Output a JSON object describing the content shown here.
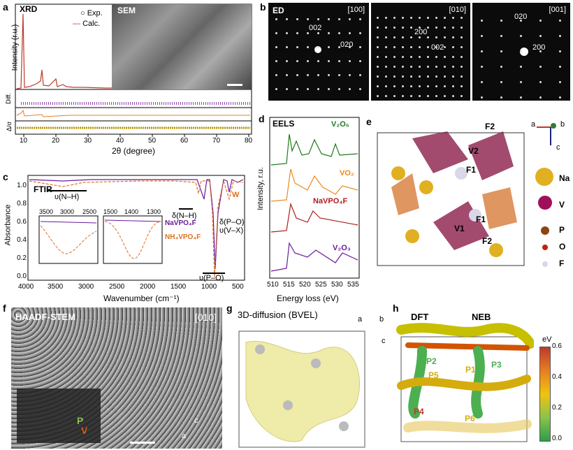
{
  "panels": {
    "a": {
      "letter": "a",
      "xrd_label": "XRD",
      "sem_label": "SEM",
      "legend": [
        "Exp.",
        "Calc."
      ],
      "ylabel": "Intensity (r.u.)",
      "diff_label": "Diff.",
      "sigma_label": "Δ/σ",
      "xlabel": "2θ (degree)",
      "xticks": [
        "10",
        "20",
        "30",
        "40",
        "50",
        "60",
        "70",
        "80"
      ]
    },
    "b": {
      "letter": "b",
      "ed_label": "ED",
      "zones": [
        "[100]",
        "[010]",
        "[001]"
      ],
      "spots_100": [
        "002",
        "020"
      ],
      "spots_010": [
        "200",
        "002"
      ],
      "spots_001": [
        "020",
        "200"
      ]
    },
    "c": {
      "letter": "c",
      "title": "FTIR",
      "ylabel": "Absorbance",
      "xlabel": "Wavenumber (cm⁻¹)",
      "xticks": [
        "4000",
        "3500",
        "3000",
        "2500",
        "2000",
        "1500",
        "1000",
        "500"
      ],
      "yticks": [
        "0.0",
        "0.2",
        "0.4",
        "0.6",
        "0.8",
        "1.0"
      ],
      "ann_nh1": "υ(N–H)",
      "ann_nh2": "δ(N–H)",
      "ann_po": "υ(P–O)",
      "ann_dpo": "δ(P–O)",
      "ann_vx": "υ(V–X)",
      "ann_w": "W",
      "inset1_ticks": [
        "3500",
        "3000",
        "2500"
      ],
      "inset2_ticks": [
        "1500",
        "1400",
        "1300"
      ],
      "legend_na": "NaVPO₄F",
      "legend_nh4": "NH₄VPO₄F",
      "colors": {
        "na": "#6a1b9a",
        "nh4": "#e07020"
      }
    },
    "d": {
      "letter": "d",
      "title": "EELS",
      "ylabel": "Intensity, r.u.",
      "xlabel": "Energy loss (eV)",
      "xticks": [
        "510",
        "515",
        "520",
        "525",
        "530",
        "535"
      ],
      "labels": [
        "V₂O₅",
        "VO₂",
        "NaVPO₄F",
        "V₂O₃"
      ],
      "colors": [
        "#1e7a1e",
        "#e88a20",
        "#b01c1c",
        "#6a1b9a"
      ]
    },
    "e": {
      "letter": "e",
      "site_labels": [
        "F2",
        "V2",
        "F1",
        "F1",
        "V1",
        "F2"
      ],
      "axes": [
        "a",
        "b",
        "c"
      ],
      "legend": [
        "Na",
        "V",
        "P",
        "O",
        "F"
      ],
      "legend_colors": [
        "#e0b020",
        "#a0105a",
        "#8b4513",
        "#c02010",
        "#d8d8e8"
      ]
    },
    "f": {
      "letter": "f",
      "title": "HAADF-STEM",
      "zone": "[010]",
      "p_label": "P",
      "v_label": "V",
      "axis_c": "c",
      "axis_a": "a"
    },
    "g": {
      "letter": "g",
      "title": "3D-diffusion (BVEL)",
      "axes": [
        "a",
        "b",
        "c"
      ]
    },
    "h": {
      "letter": "h",
      "dft": "DFT",
      "neb": "NEB",
      "paths": [
        "P1",
        "P2",
        "P3",
        "P4",
        "P5",
        "P6"
      ],
      "colorbar_unit": "eV",
      "colorbar_ticks": [
        "0.6",
        "0.4",
        "0.2",
        "0.0"
      ]
    }
  }
}
